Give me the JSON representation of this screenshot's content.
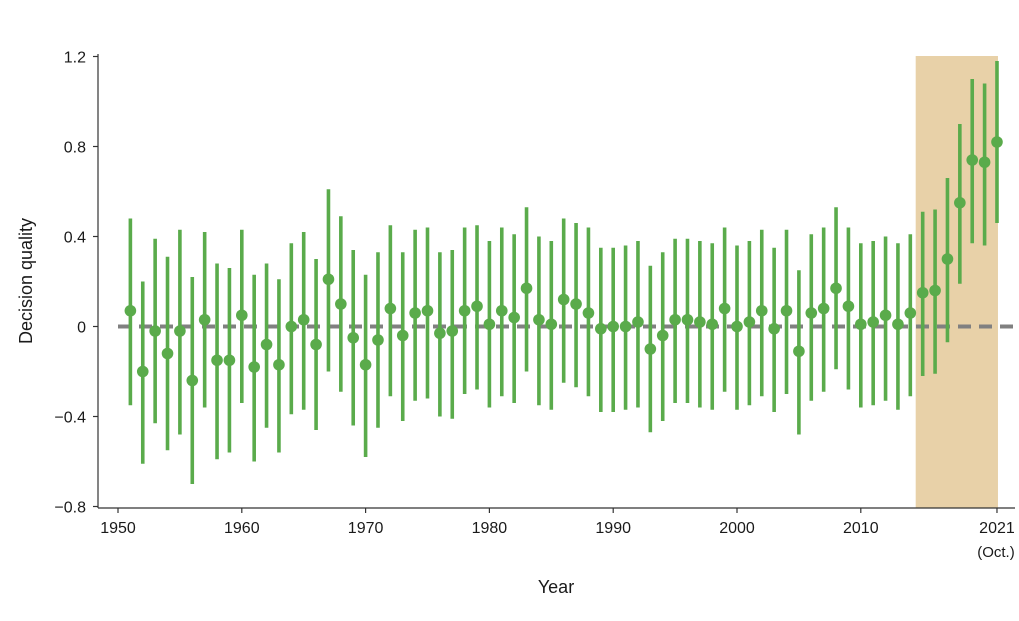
{
  "chart_data": {
    "type": "scatter",
    "title": "",
    "xlabel": "Year",
    "ylabel": "Decision quality",
    "x_ticks": [
      "1950",
      "1960",
      "1970",
      "1980",
      "1990",
      "2000",
      "2010",
      "2021"
    ],
    "x_tick_note": "(Oct.)",
    "y_ticks": [
      "1.2",
      "0.8",
      "0.4",
      "0",
      "−0.4",
      "−0.8"
    ],
    "ylim": [
      -0.8,
      1.2
    ],
    "xlim": [
      1950,
      2021
    ],
    "reference_line": 0,
    "shaded_region": [
      2015,
      2021
    ],
    "colors": {
      "series": "#5aab4b",
      "reference_line": "#808080",
      "shaded_region": "#e8d1a8",
      "axis": "#333333"
    },
    "series": [
      {
        "x": [
          1951,
          1952,
          1953,
          1954,
          1955,
          1956,
          1957,
          1958,
          1959,
          1960,
          1961,
          1962,
          1963,
          1964,
          1965,
          1966,
          1967,
          1968,
          1969,
          1970,
          1971,
          1972,
          1973,
          1974,
          1975,
          1976,
          1977,
          1978,
          1979,
          1980,
          1981,
          1982,
          1983,
          1984,
          1985,
          1986,
          1987,
          1988,
          1989,
          1990,
          1991,
          1992,
          1993,
          1994,
          1995,
          1996,
          1997,
          1998,
          1999,
          2000,
          2001,
          2002,
          2003,
          2004,
          2005,
          2006,
          2007,
          2008,
          2009,
          2010,
          2011,
          2012,
          2013,
          2014,
          2015,
          2016,
          2017,
          2018,
          2019,
          2020,
          2021
        ],
        "values": [
          0.07,
          -0.2,
          -0.02,
          -0.12,
          -0.02,
          -0.24,
          0.03,
          -0.15,
          -0.15,
          0.05,
          -0.18,
          -0.08,
          -0.17,
          0.0,
          0.03,
          -0.08,
          0.21,
          0.1,
          -0.05,
          -0.17,
          -0.06,
          0.08,
          -0.04,
          0.06,
          0.07,
          -0.03,
          -0.02,
          0.07,
          0.09,
          0.01,
          0.07,
          0.04,
          0.17,
          0.03,
          0.01,
          0.12,
          0.1,
          0.06,
          -0.01,
          0.0,
          0.0,
          0.02,
          -0.1,
          -0.04,
          0.03,
          0.03,
          0.02,
          0.01,
          0.08,
          0.0,
          0.02,
          0.07,
          -0.01,
          0.07,
          -0.11,
          0.06,
          0.08,
          0.17,
          0.09,
          0.01,
          0.02,
          0.05,
          0.01,
          0.06,
          0.15,
          0.16,
          0.3,
          0.55,
          0.74,
          0.73,
          0.82
        ],
        "lower": [
          -0.35,
          -0.61,
          -0.43,
          -0.55,
          -0.48,
          -0.7,
          -0.36,
          -0.59,
          -0.56,
          -0.34,
          -0.6,
          -0.45,
          -0.56,
          -0.39,
          -0.37,
          -0.46,
          -0.2,
          -0.29,
          -0.44,
          -0.58,
          -0.45,
          -0.31,
          -0.42,
          -0.33,
          -0.32,
          -0.4,
          -0.41,
          -0.3,
          -0.28,
          -0.36,
          -0.31,
          -0.34,
          -0.2,
          -0.35,
          -0.37,
          -0.25,
          -0.27,
          -0.31,
          -0.38,
          -0.38,
          -0.37,
          -0.36,
          -0.47,
          -0.42,
          -0.34,
          -0.34,
          -0.36,
          -0.37,
          -0.29,
          -0.37,
          -0.35,
          -0.31,
          -0.38,
          -0.3,
          -0.48,
          -0.33,
          -0.29,
          -0.19,
          -0.28,
          -0.36,
          -0.35,
          -0.33,
          -0.37,
          -0.31,
          -0.22,
          -0.21,
          -0.07,
          0.19,
          0.37,
          0.36,
          0.46
        ],
        "upper": [
          0.48,
          0.2,
          0.39,
          0.31,
          0.43,
          0.22,
          0.42,
          0.28,
          0.26,
          0.43,
          0.23,
          0.28,
          0.21,
          0.37,
          0.42,
          0.3,
          0.61,
          0.49,
          0.34,
          0.23,
          0.33,
          0.45,
          0.33,
          0.43,
          0.44,
          0.33,
          0.34,
          0.44,
          0.45,
          0.38,
          0.44,
          0.41,
          0.53,
          0.4,
          0.38,
          0.48,
          0.46,
          0.44,
          0.35,
          0.35,
          0.36,
          0.38,
          0.27,
          0.33,
          0.39,
          0.39,
          0.38,
          0.37,
          0.44,
          0.36,
          0.38,
          0.43,
          0.35,
          0.43,
          0.25,
          0.41,
          0.44,
          0.53,
          0.44,
          0.37,
          0.38,
          0.4,
          0.37,
          0.41,
          0.51,
          0.52,
          0.66,
          0.9,
          1.1,
          1.08,
          1.18
        ]
      }
    ]
  }
}
